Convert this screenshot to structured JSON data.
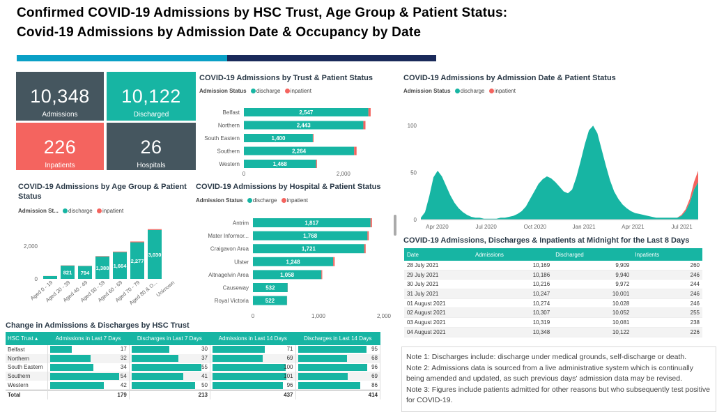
{
  "page": {
    "title_line1": "Confirmed COVID-19 Admissions by HSC Trust, Age Group & Patient Status:",
    "title_line2": "Covid-19 Admissions by Admission Date & Occupancy by Date"
  },
  "colors": {
    "teal": "#17b5a3",
    "slate": "#45565f",
    "salmon": "#f4645f",
    "navy": "#1a2a5a",
    "blue_accent": "#0aa0c6"
  },
  "kpis": [
    {
      "value": "10,348",
      "label": "Admissions",
      "color": "#45565f"
    },
    {
      "value": "10,122",
      "label": "Discharged",
      "color": "#17b5a3"
    },
    {
      "value": "226",
      "label": "Inpatients",
      "color": "#f4645f"
    },
    {
      "value": "26",
      "label": "Hospitals",
      "color": "#45565f"
    }
  ],
  "legend": {
    "label": "Admission Status",
    "label_short": "Admission St...",
    "discharge": "discharge",
    "inpatient": "inpatient"
  },
  "trust_chart": {
    "title": "COVID-19 Admissions by Trust & Patient Status",
    "chart_data": {
      "type": "bar",
      "orientation": "horizontal",
      "stacked": true,
      "categories": [
        "Belfast",
        "Northern",
        "South Eastern",
        "Southern",
        "Western"
      ],
      "series": [
        {
          "name": "discharge",
          "values": [
            2502,
            2400,
            1385,
            2215,
            1450
          ]
        },
        {
          "name": "inpatient",
          "values": [
            45,
            43,
            15,
            49,
            18
          ]
        }
      ],
      "totals": [
        2547,
        2443,
        1400,
        2264,
        1468
      ],
      "total_labels": [
        "2,547",
        "2,443",
        "1,400",
        "2,264",
        "1,468"
      ],
      "xlim": [
        0,
        2800
      ],
      "xticks": [
        0,
        2000
      ],
      "xtick_labels": [
        "0",
        "2,000"
      ]
    }
  },
  "age_chart": {
    "title_line1": "COVID-19 Admissions by Age Group & Patient",
    "title_line2": "Status",
    "chart_data": {
      "type": "bar",
      "stacked": true,
      "categories": [
        "Aged 0 - 19",
        "Aged 20 - 39",
        "Aged 40 - 49",
        "Aged 50 - 59",
        "Aged 60 - 69",
        "Aged 70 - 79",
        "Aged 80 & O...",
        "Unknown"
      ],
      "series": [
        {
          "name": "discharge",
          "values": [
            170,
            806,
            784,
            1362,
            1630,
            2229,
            2980,
            0
          ]
        },
        {
          "name": "inpatient",
          "values": [
            5,
            15,
            10,
            26,
            34,
            48,
            50,
            0
          ]
        }
      ],
      "totals": [
        175,
        821,
        794,
        1388,
        1664,
        2277,
        3030,
        0
      ],
      "total_labels": [
        "",
        "821",
        "794",
        "1,388",
        "1,664",
        "2,277",
        "3,030",
        ""
      ],
      "ylim": [
        0,
        3400
      ],
      "yticks": [
        0,
        2000
      ],
      "ytick_labels": [
        "0",
        "2,000"
      ]
    }
  },
  "hospital_chart": {
    "title": "COVID-19 Admissions by Hospital & Patient Status",
    "chart_data": {
      "type": "bar",
      "orientation": "horizontal",
      "stacked": true,
      "categories": [
        "Antrim",
        "Mater Informor...",
        "Craigavon Area",
        "Ulster",
        "Altnagelvin Area",
        "Causeway",
        "Royal Victoria"
      ],
      "series": [
        {
          "name": "discharge",
          "values": [
            1795,
            1748,
            1700,
            1225,
            1045,
            530,
            520
          ]
        },
        {
          "name": "inpatient",
          "values": [
            22,
            20,
            21,
            23,
            13,
            2,
            2
          ]
        }
      ],
      "totals": [
        1817,
        1768,
        1721,
        1248,
        1058,
        532,
        522
      ],
      "total_labels": [
        "1,817",
        "1,768",
        "1,721",
        "1,248",
        "1,058",
        "532",
        "522"
      ],
      "xlim": [
        0,
        2000
      ],
      "xticks": [
        0,
        1000,
        2000
      ],
      "xtick_labels": [
        "0",
        "1,000",
        "2,000"
      ]
    }
  },
  "date_chart": {
    "title": "COVID-19 Admissions by Admission Date & Patient Status",
    "chart_data": {
      "type": "area",
      "stacked": true,
      "x_start": "2020-03-01",
      "x_end": "2021-08-01",
      "x_step": "7 days",
      "ylim": [
        0,
        115
      ],
      "yticks": [
        0,
        50,
        100
      ],
      "ytick_labels": [
        "0",
        "50",
        "100"
      ],
      "xtick_labels": [
        "Apr 2020",
        "Jul 2020",
        "Oct 2020",
        "Jan 2021",
        "Apr 2021",
        "Jul 2021"
      ],
      "series": [
        {
          "name": "discharge",
          "values": [
            2,
            8,
            25,
            45,
            52,
            46,
            36,
            26,
            18,
            12,
            8,
            5,
            3,
            2,
            2,
            1,
            1,
            1,
            1,
            2,
            2,
            3,
            4,
            6,
            9,
            14,
            22,
            30,
            38,
            43,
            46,
            44,
            40,
            35,
            30,
            28,
            32,
            45,
            62,
            80,
            95,
            100,
            92,
            75,
            58,
            42,
            30,
            22,
            16,
            12,
            9,
            7,
            6,
            5,
            4,
            3,
            2,
            2,
            2,
            2,
            2,
            2,
            4,
            9,
            18,
            32,
            40
          ]
        },
        {
          "name": "inpatient",
          "values": [
            0,
            0,
            0,
            0,
            0,
            0,
            0,
            0,
            0,
            0,
            0,
            0,
            0,
            0,
            0,
            0,
            0,
            0,
            0,
            0,
            0,
            0,
            0,
            0,
            0,
            0,
            0,
            0,
            0,
            0,
            0,
            0,
            0,
            0,
            0,
            0,
            0,
            0,
            0,
            0,
            0,
            0,
            0,
            0,
            0,
            0,
            0,
            0,
            0,
            0,
            0,
            0,
            0,
            0,
            0,
            0,
            0,
            0,
            0,
            0,
            0,
            0,
            1,
            2,
            4,
            8,
            12
          ]
        }
      ]
    }
  },
  "occupancy": {
    "title": "COVID-19 Admissions, Discharges & Inpatients at Midnight for the Last 8 Days",
    "columns": [
      "Date",
      "Admissions",
      "Discharged",
      "Inpatients"
    ],
    "rows": [
      [
        "28 July 2021",
        "10,169",
        "9,909",
        "260"
      ],
      [
        "29 July 2021",
        "10,186",
        "9,940",
        "246"
      ],
      [
        "30 July 2021",
        "10,216",
        "9,972",
        "244"
      ],
      [
        "31 July 2021",
        "10,247",
        "10,001",
        "246"
      ],
      [
        "01 August 2021",
        "10,274",
        "10,028",
        "246"
      ],
      [
        "02 August 2021",
        "10,307",
        "10,052",
        "255"
      ],
      [
        "03 August 2021",
        "10,319",
        "10,081",
        "238"
      ],
      [
        "04 August 2021",
        "10,348",
        "10,122",
        "226"
      ]
    ]
  },
  "changes": {
    "title": "Change in Admissions & Discharges by HSC Trust",
    "columns": [
      "HSC Trust",
      "Admissions in Last 7 Days",
      "Discharges in Last 7 Days",
      "Admissions in Last 14 Days",
      "Discharges in Last 14 Days"
    ],
    "col_max": [
      60,
      60,
      110,
      110
    ],
    "rows": [
      {
        "name": "Belfast",
        "values": [
          17,
          30,
          71,
          95
        ],
        "labels": [
          "17",
          "30",
          "71",
          "95"
        ]
      },
      {
        "name": "Northern",
        "values": [
          32,
          37,
          69,
          68
        ],
        "labels": [
          "32",
          "37",
          "69",
          "68"
        ]
      },
      {
        "name": "South Eastern",
        "values": [
          34,
          55,
          100,
          96
        ],
        "labels": [
          "34",
          "55",
          "100",
          "96"
        ]
      },
      {
        "name": "Southern",
        "values": [
          54,
          41,
          101,
          69
        ],
        "labels": [
          "54",
          "41",
          "101",
          "69"
        ]
      },
      {
        "name": "Western",
        "values": [
          42,
          50,
          96,
          86
        ],
        "labels": [
          "42",
          "50",
          "96",
          "86"
        ]
      }
    ],
    "total": {
      "name": "Total",
      "labels": [
        "179",
        "213",
        "437",
        "414"
      ]
    }
  },
  "notes": [
    {
      "label": "Note 1:",
      "text": "Discharges include: discharge under medical grounds, self-discharge or death."
    },
    {
      "label": "Note 2:",
      "text": "Admissions data is sourced from a live administrative system which is continually being amended and updated, as such previous days' admission data may be revised."
    },
    {
      "label": "Note 3:",
      "text": "Figures include patients admitted for other reasons but who subsequently test positive for COVID-19."
    }
  ]
}
